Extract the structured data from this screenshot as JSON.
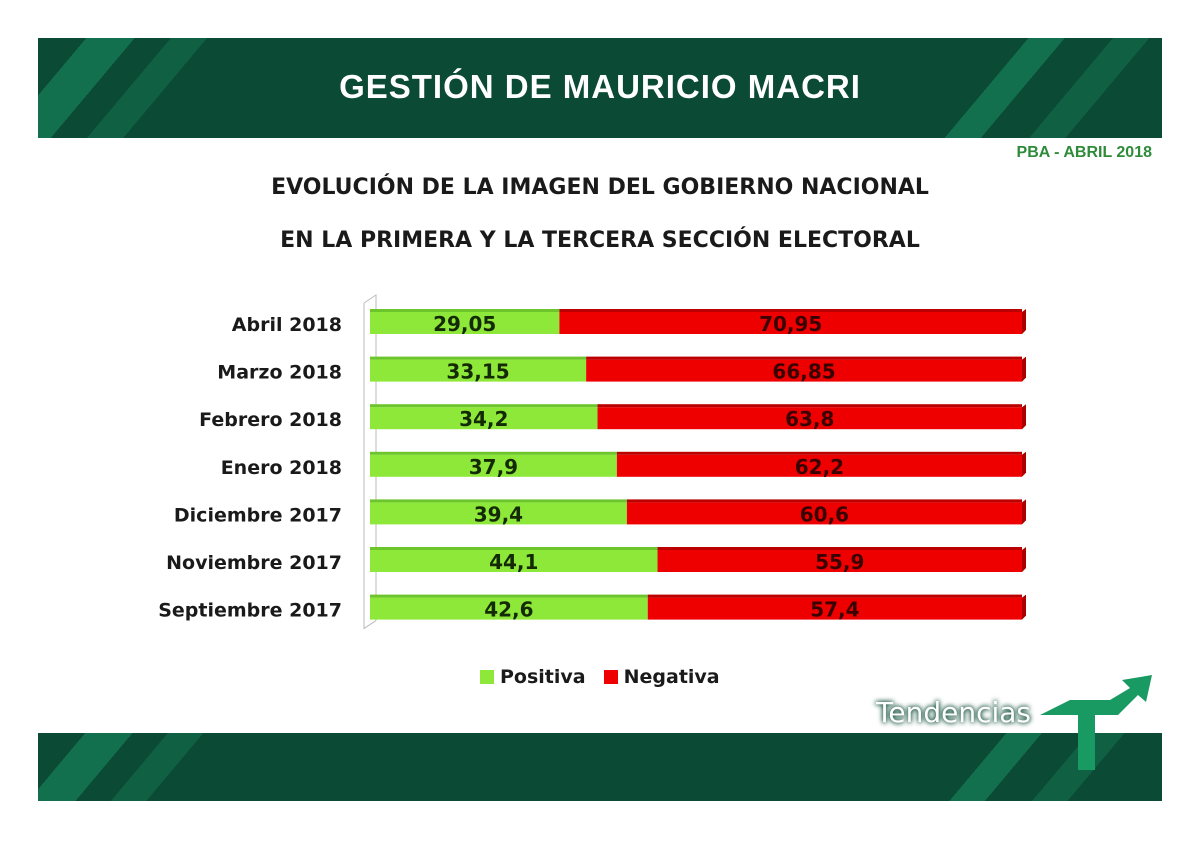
{
  "header": {
    "title": "GESTIÓN DE MAURICIO MACRI",
    "tag": "PBA - ABRIL 2018"
  },
  "logo": {
    "text": "Tendencias"
  },
  "colors": {
    "banner": "#0b4a35",
    "positiva": "#8ee83a",
    "negativa": "#ee0000"
  },
  "chart_data": {
    "type": "bar",
    "orientation": "horizontal",
    "stacked": "100%",
    "title_lines": [
      "EVOLUCIÓN DE LA IMAGEN DEL GOBIERNO NACIONAL",
      "EN LA PRIMERA Y LA TERCERA SECCIÓN ELECTORAL"
    ],
    "categories": [
      "Abril 2018",
      "Marzo 2018",
      "Febrero 2018",
      "Enero 2018",
      "Diciembre 2017",
      "Noviembre 2017",
      "Septiembre 2017"
    ],
    "series": [
      {
        "name": "Positiva",
        "color": "#8ee83a",
        "values": [
          29.05,
          33.15,
          34.2,
          37.9,
          39.4,
          44.1,
          42.6
        ],
        "labels": [
          "29,05",
          "33,15",
          "34,2",
          "37,9",
          "39,4",
          "44,1",
          "42,6"
        ]
      },
      {
        "name": "Negativa",
        "color": "#ee0000",
        "values": [
          70.95,
          66.85,
          63.8,
          62.2,
          60.6,
          55.9,
          57.4
        ],
        "labels": [
          "70,95",
          "66,85",
          "63,8",
          "62,2",
          "60,6",
          "55,9",
          "57,4"
        ]
      }
    ],
    "legend": "bottom",
    "grid": false
  }
}
